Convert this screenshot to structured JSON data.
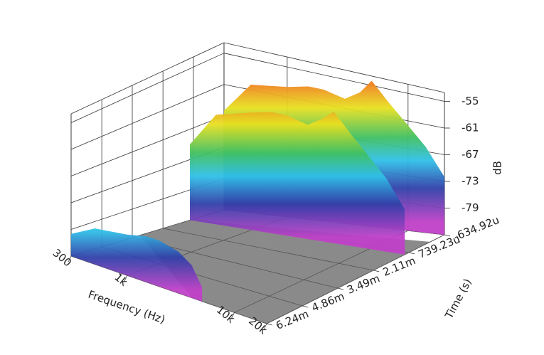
{
  "chart_data": {
    "type": "waterfall",
    "x_label": "Frequency (Hz)",
    "y_label": "Time (s)",
    "z_label": "dB",
    "x_log": true,
    "xlim": [
      300,
      20000
    ],
    "xticks": [
      300,
      {
        "value": 1000,
        "label": "1k"
      },
      {
        "value": 10000,
        "label": "10k"
      },
      {
        "value": 20000,
        "label": "20k"
      }
    ],
    "ylim": [
      -0.00063492,
      0.00624
    ],
    "yticks": [
      {
        "value": -0.00063492,
        "label": "-634.92u"
      },
      {
        "value": 0.00073923,
        "label": "739.23u"
      },
      {
        "value": 0.00211,
        "label": "2.11m"
      },
      {
        "value": 0.00349,
        "label": "3.49m"
      },
      {
        "value": 0.00486,
        "label": "4.86m"
      },
      {
        "value": 0.00624,
        "label": "6.24m"
      }
    ],
    "zlim": [
      -85,
      -53
    ],
    "zticks": [
      -55,
      -61,
      -67,
      -73,
      -79
    ],
    "grid": true,
    "x": [
      300,
      500,
      1000,
      1500,
      2000,
      3000,
      4000,
      5000,
      7000,
      10000,
      14000,
      20000
    ],
    "series": [
      {
        "time": -0.00063492,
        "values": [
          -66,
          -60,
          -59,
          -58,
          -58,
          -59,
          -57,
          -54,
          -58,
          -62,
          -66,
          -72
        ]
      },
      {
        "time": 0.0009,
        "values": [
          -70,
          -63,
          -61,
          -60,
          -60,
          -61,
          -59,
          -57,
          -61,
          -65,
          -69,
          -75
        ]
      },
      {
        "time": 0.00624,
        "values": [
          -80,
          -77,
          -76,
          -75,
          -75,
          -76,
          -78,
          -82,
          null,
          null,
          null,
          null
        ]
      }
    ]
  }
}
